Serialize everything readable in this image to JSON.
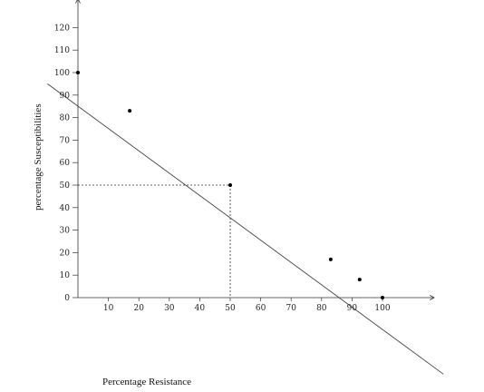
{
  "chart_data": {
    "type": "scatter",
    "xlabel": "Percentage Resistance",
    "ylabel": "percentage  Susceptibilities",
    "xlim": [
      0,
      117
    ],
    "ylim": [
      0,
      130
    ],
    "x_ticks": [
      "10",
      "20",
      "30",
      "40",
      "50",
      "60",
      "70",
      "80",
      "90",
      "100"
    ],
    "y_ticks": [
      "0",
      "10",
      "20",
      "30",
      "40",
      "50",
      "60",
      "70",
      "80",
      "90",
      "100",
      "110",
      "120"
    ],
    "points": [
      {
        "x": 0,
        "y": 100
      },
      {
        "x": 17,
        "y": 83
      },
      {
        "x": 50,
        "y": 50
      },
      {
        "x": 83,
        "y": 17
      },
      {
        "x": 92.5,
        "y": 8
      },
      {
        "x": 100,
        "y": 0
      }
    ],
    "trend_line": {
      "x1": -10,
      "y1": 95,
      "x2": 120,
      "y2": -34
    },
    "reference_lines": {
      "x": 50,
      "y": 50
    },
    "grid": false,
    "colors": {
      "axis": "#333333",
      "points": "#000000",
      "line": "#444444"
    }
  }
}
